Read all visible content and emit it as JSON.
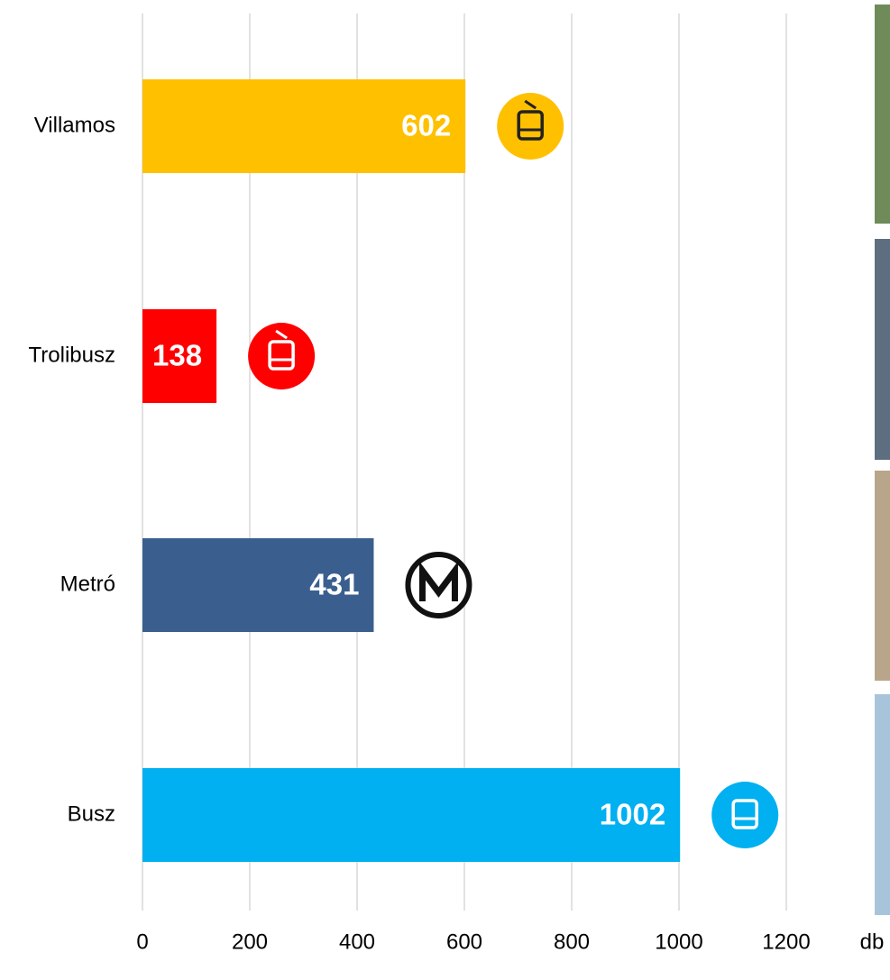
{
  "chart_data": {
    "type": "barh",
    "categories": [
      "Villamos",
      "Trolibusz",
      "Metró",
      "Busz"
    ],
    "values": [
      602,
      138,
      431,
      1002
    ],
    "colors": [
      "#FFC000",
      "#FF0000",
      "#3A5F8F",
      "#00B0F0"
    ],
    "xlim": [
      0,
      1200
    ],
    "xticks": [
      0,
      200,
      400,
      600,
      800,
      1000,
      1200
    ],
    "x_label": "db",
    "grid": true
  }
}
